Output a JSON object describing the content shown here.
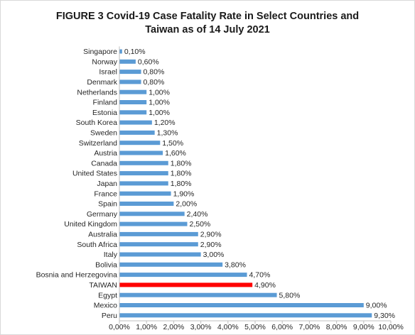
{
  "chart_data": {
    "type": "bar",
    "orientation": "horizontal",
    "title_lines": [
      "FIGURE 3   Covid-19 Case Fatality Rate in Select Countries and",
      "Taiwan as of 14 July 2021"
    ],
    "categories": [
      "Singapore",
      "Norway",
      "Israel",
      "Denmark",
      "Netherlands",
      "Finland",
      "Estonia",
      "South Korea",
      "Sweden",
      "Switzerland",
      "Austria",
      "Canada",
      "United States",
      "Japan",
      "France",
      "Spain",
      "Germany",
      "United Kingdom",
      "Australia",
      "South Africa",
      "Italy",
      "Bolivia",
      "Bosnia and Herzegovina",
      "TAIWAN",
      "Egypt",
      "Mexico",
      "Peru"
    ],
    "values": [
      0.1,
      0.6,
      0.8,
      0.8,
      1.0,
      1.0,
      1.0,
      1.2,
      1.3,
      1.5,
      1.6,
      1.8,
      1.8,
      1.8,
      1.9,
      2.0,
      2.4,
      2.5,
      2.9,
      2.9,
      3.0,
      3.8,
      4.7,
      4.9,
      5.8,
      9.0,
      9.3
    ],
    "value_labels": [
      "0,10%",
      "0,60%",
      "0,80%",
      "0,80%",
      "1,00%",
      "1,00%",
      "1,00%",
      "1,20%",
      "1,30%",
      "1,50%",
      "1,60%",
      "1,80%",
      "1,80%",
      "1,80%",
      "1,90%",
      "2,00%",
      "2,40%",
      "2,50%",
      "2,90%",
      "2,90%",
      "3,00%",
      "3,80%",
      "4,70%",
      "4,90%",
      "5,80%",
      "9,00%",
      "9,30%"
    ],
    "xlim": [
      0,
      10
    ],
    "x_ticks": [
      "0,00%",
      "1,00%",
      "2,00%",
      "3,00%",
      "4,00%",
      "5,00%",
      "6,00%",
      "7,00%",
      "8,00%",
      "9,00%",
      "10,00%"
    ],
    "bar_color": "#5b9bd5",
    "highlight": {
      "category": "TAIWAN",
      "color": "#ff0000"
    },
    "grid": false,
    "legend": "none"
  }
}
